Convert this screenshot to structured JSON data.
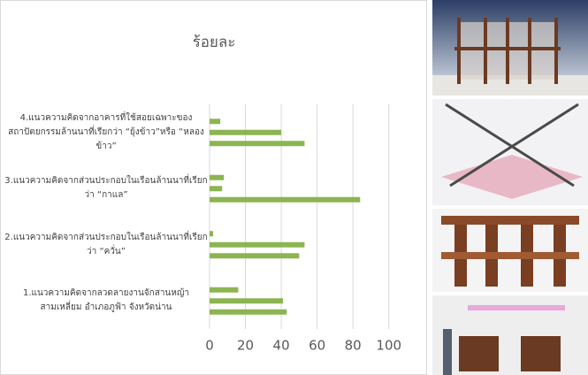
{
  "chart_data": {
    "type": "bar",
    "orientation": "horizontal",
    "title": "ร้อยละ",
    "categories": [
      "1.แนวความคิดจากลวดลายงานจักสานหญ้าสามเหลี่ยม อำเภอภูฟ้า จังหวัดน่าน",
      "2.แนวความคิดจากส่วนประกอบในเรือนล้านนาที่เรียกว่า “ควั่น”",
      "3.แนวความคิดจากส่วนประกอบในเรือนล้านนาที่เรียกว่า “กาแล”",
      "4.แนวความคิดจากอาคารที่ใช้สอยเฉพาะของสถาปัตยกรรมล้านนาที่เรียกว่า “ยุ้งข้าว”หรือ “หลองข้าว”"
    ],
    "series": [
      {
        "color": "#8cb552",
        "values": [
          43,
          50,
          84,
          53
        ]
      },
      {
        "color": "#8cb552",
        "values": [
          41,
          53,
          7,
          40
        ]
      },
      {
        "color": "#8cb552",
        "values": [
          16,
          2,
          8,
          6
        ]
      }
    ],
    "xlim": [
      0,
      110
    ],
    "xticks": [
      0,
      20,
      40,
      60,
      80,
      100
    ],
    "grid": true
  }
}
